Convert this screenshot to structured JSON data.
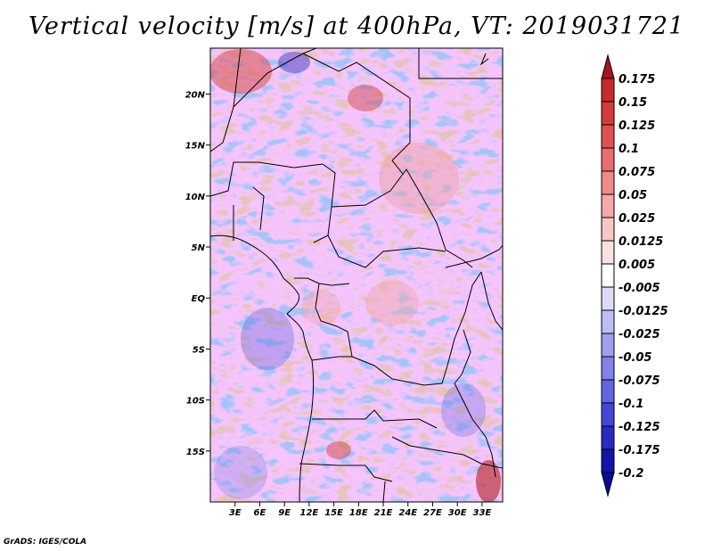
{
  "title": "Vertical velocity [m/s] at 400hPa, VT: 2019031721",
  "credit": "GrADS: IGES/COLA",
  "map": {
    "lon_range": [
      0,
      35.5
    ],
    "lat_range": [
      -20,
      24.5
    ],
    "lat_ticks": [
      {
        "value": 20,
        "label": "20N"
      },
      {
        "value": 15,
        "label": "15N"
      },
      {
        "value": 10,
        "label": "10N"
      },
      {
        "value": 5,
        "label": "5N"
      },
      {
        "value": 0,
        "label": "EQ"
      },
      {
        "value": -5,
        "label": "5S"
      },
      {
        "value": -10,
        "label": "10S"
      },
      {
        "value": -15,
        "label": "15S"
      }
    ],
    "lon_ticks": [
      {
        "value": 3,
        "label": "3E"
      },
      {
        "value": 6,
        "label": "6E"
      },
      {
        "value": 9,
        "label": "9E"
      },
      {
        "value": 12,
        "label": "12E"
      },
      {
        "value": 15,
        "label": "15E"
      },
      {
        "value": 18,
        "label": "18E"
      },
      {
        "value": 21,
        "label": "21E"
      },
      {
        "value": 24,
        "label": "24E"
      },
      {
        "value": 27,
        "label": "27E"
      },
      {
        "value": 30,
        "label": "30E"
      },
      {
        "value": 33,
        "label": "33E"
      }
    ]
  },
  "colorbar": {
    "levels": [
      {
        "label": "0.175",
        "color": "#b4141e"
      },
      {
        "label": "0.15",
        "color": "#c62a2a"
      },
      {
        "label": "0.125",
        "color": "#d43c3c"
      },
      {
        "label": "0.1",
        "color": "#e05252"
      },
      {
        "label": "0.075",
        "color": "#e66e6e"
      },
      {
        "label": "0.05",
        "color": "#ee8a8a"
      },
      {
        "label": "0.025",
        "color": "#f4a8a8"
      },
      {
        "label": "0.0125",
        "color": "#f8c6c6"
      },
      {
        "label": "0.005",
        "color": "#fbe0e0"
      },
      {
        "label": "-0.005",
        "color": "#ffffff"
      },
      {
        "label": "-0.0125",
        "color": "#dcdcfa"
      },
      {
        "label": "-0.025",
        "color": "#bebef6"
      },
      {
        "label": "-0.05",
        "color": "#a0a0f0"
      },
      {
        "label": "-0.075",
        "color": "#8282ea"
      },
      {
        "label": "-0.1",
        "color": "#6464e2"
      },
      {
        "label": "-0.125",
        "color": "#4646d6"
      },
      {
        "label": "-0.175",
        "color": "#2a2ac4"
      },
      {
        "label": "-0.2",
        "color": "#1414a8"
      }
    ],
    "top_color": "#a8141e",
    "bottom_color": "#0a0a96"
  }
}
